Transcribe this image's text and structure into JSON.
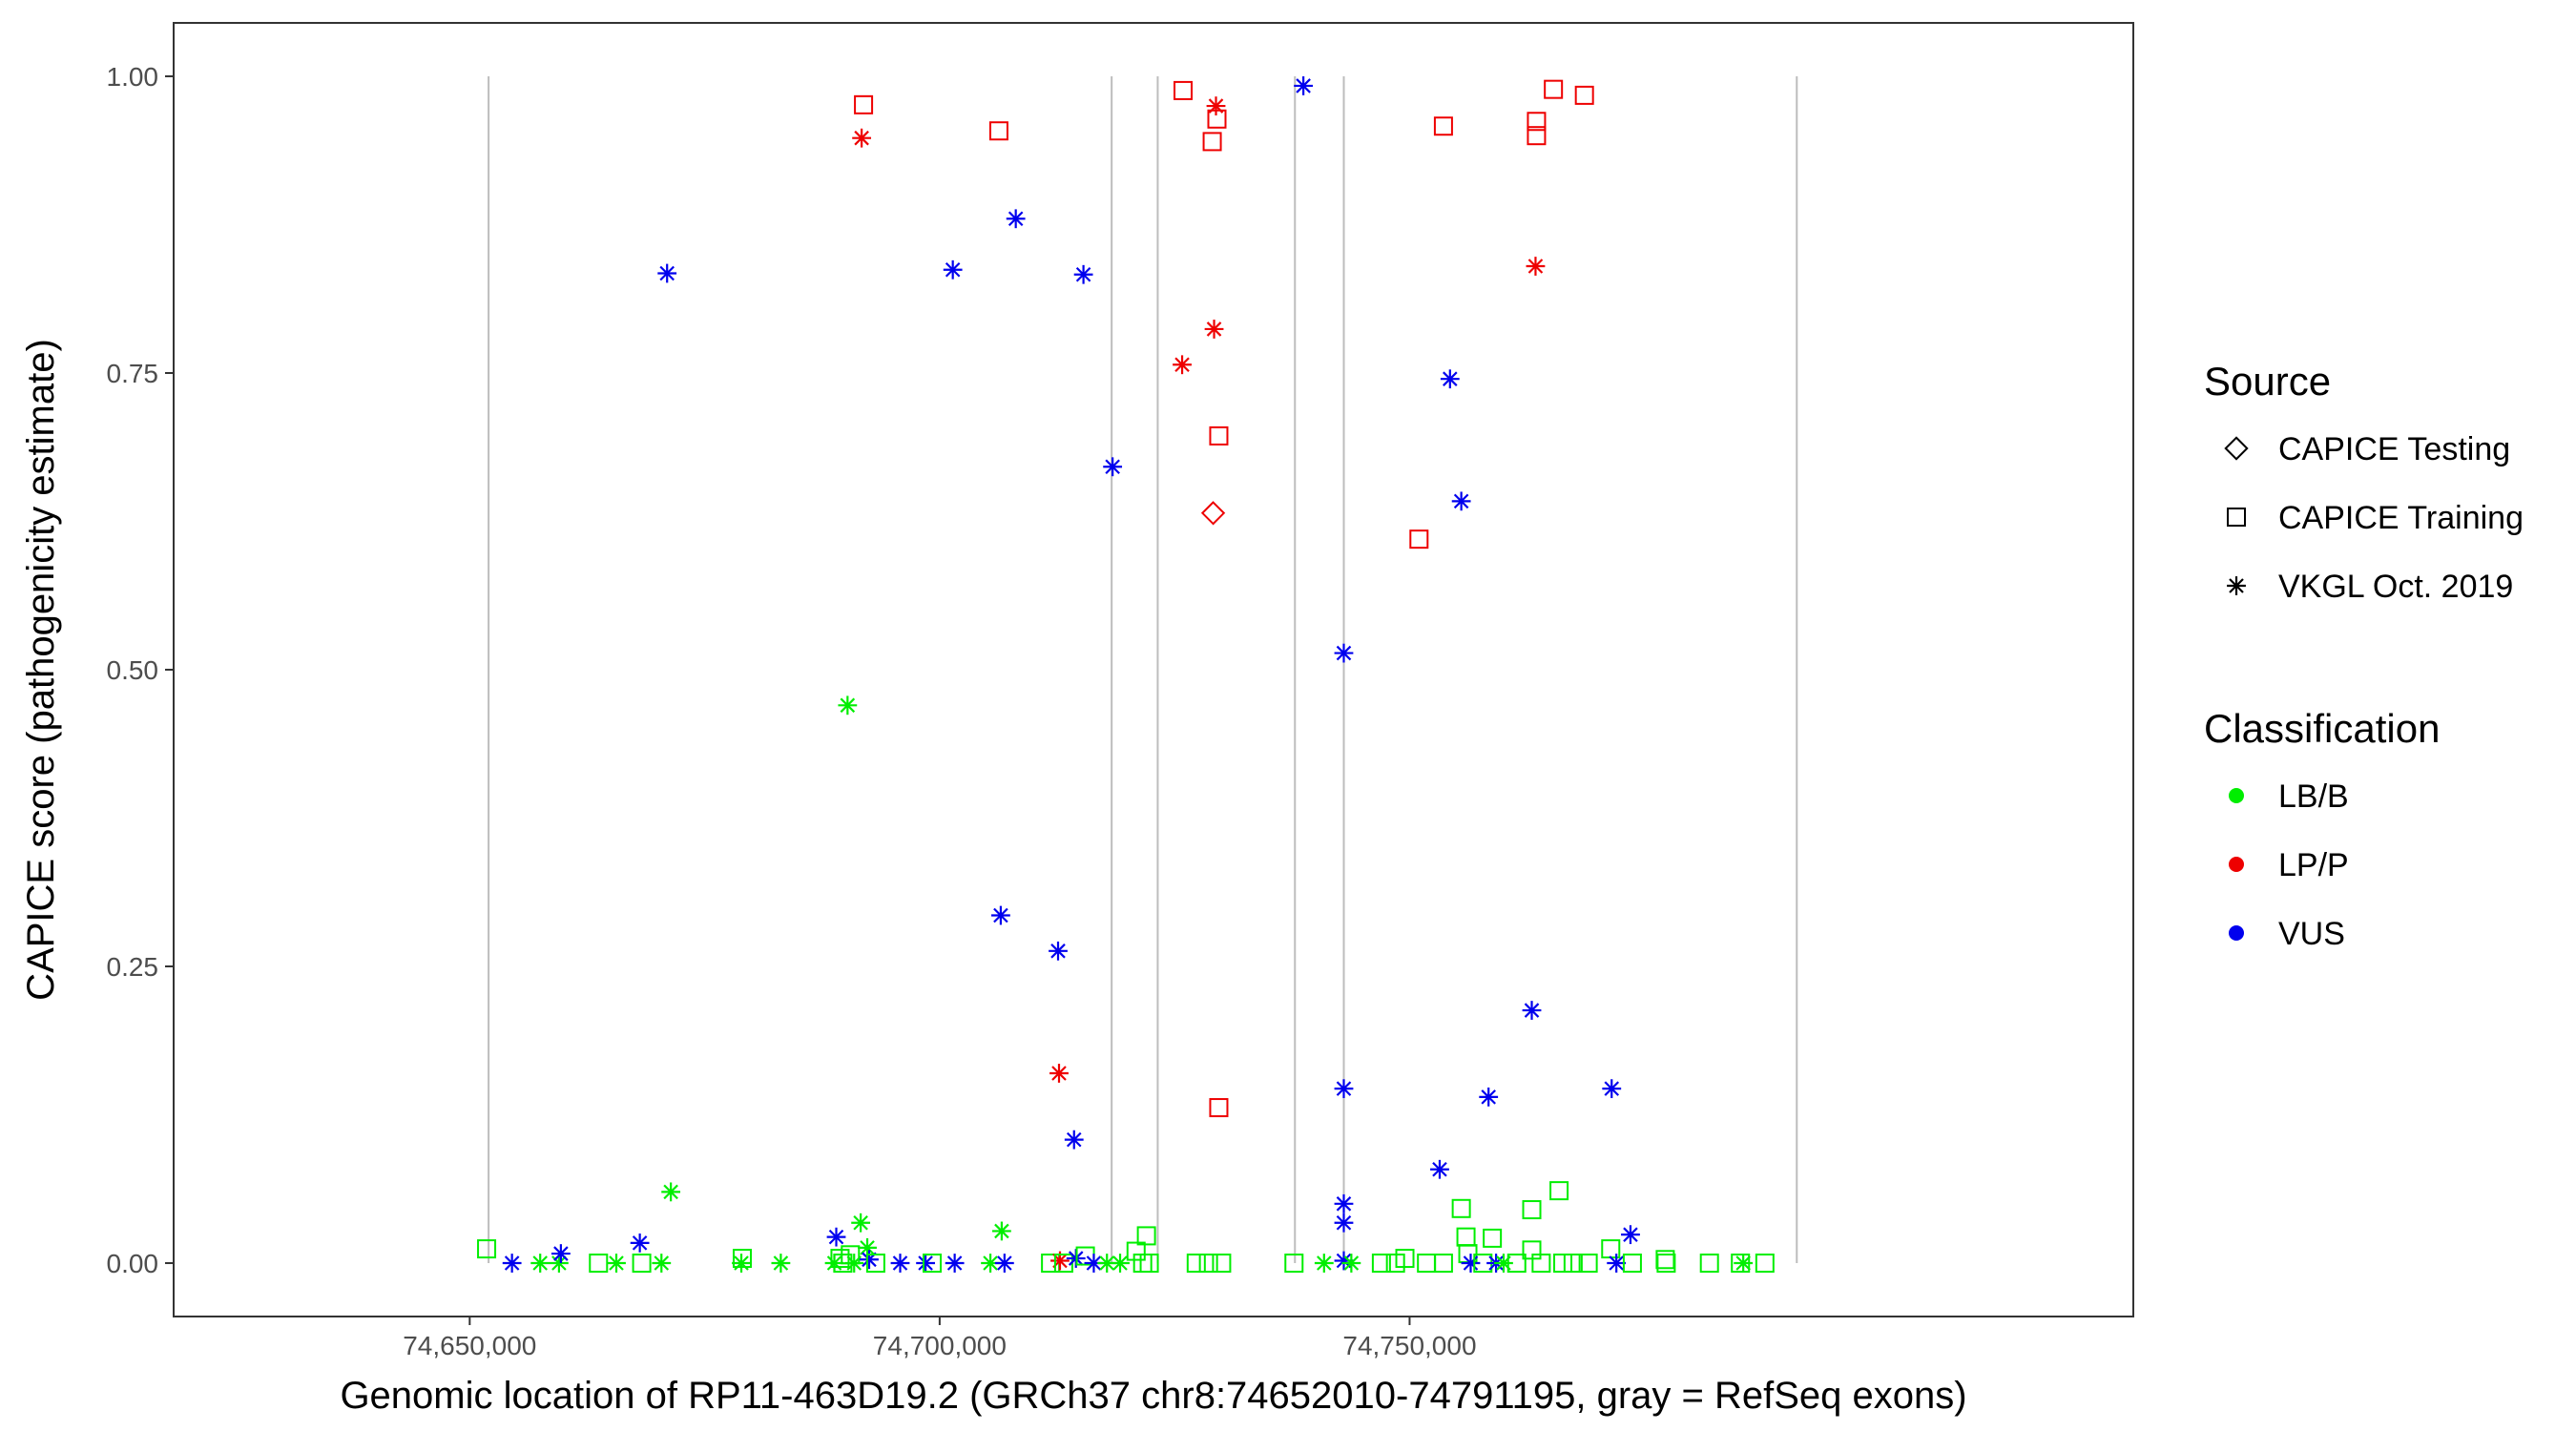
{
  "chart_data": {
    "type": "scatter",
    "title": "",
    "xlabel": "Genomic location of RP11-463D19.2 (GRCh37 chr8:74652010-74791195, gray = RefSeq exons)",
    "ylabel": "CAPICE score (pathogenicity estimate)",
    "xlim": [
      74618500,
      74827000
    ],
    "ylim": [
      -0.045,
      1.045
    ],
    "x_ticks": [
      74650000,
      74700000,
      74750000
    ],
    "x_tick_labels": [
      "74,650,000",
      "74,700,000",
      "74,750,000"
    ],
    "y_ticks": [
      0,
      0.25,
      0.5,
      0.75,
      1.0
    ],
    "y_tick_labels": [
      "0.00",
      "0.25",
      "0.50",
      "0.75",
      "1.00"
    ],
    "grid": false,
    "exon_lines": [
      74652010,
      74718300,
      74723200,
      74737800,
      74743000,
      74791195
    ],
    "exon_line_range": [
      0,
      1.0
    ],
    "legend_placement": "right",
    "colors": {
      "LB/B": "#00ee00",
      "LP/P": "#ee0000",
      "VUS": "#0000ee"
    },
    "legend": {
      "source_title": "Source",
      "source_items": [
        {
          "label": "CAPICE Testing",
          "shape": "diamond"
        },
        {
          "label": "CAPICE Training",
          "shape": "square"
        },
        {
          "label": "VKGL Oct. 2019",
          "shape": "asterisk"
        }
      ],
      "class_title": "Classification",
      "class_items": [
        {
          "label": "LB/B",
          "color": "#00ee00"
        },
        {
          "label": "LP/P",
          "color": "#ee0000"
        },
        {
          "label": "VUS",
          "color": "#0000ee"
        }
      ]
    },
    "points": [
      {
        "x": 74651800,
        "y": 0.012,
        "shape": "square",
        "cls": "LB/B"
      },
      {
        "x": 74654500,
        "y": 0.0,
        "shape": "asterisk",
        "cls": "VUS"
      },
      {
        "x": 74657500,
        "y": 0.0,
        "shape": "asterisk",
        "cls": "LB/B"
      },
      {
        "x": 74659500,
        "y": 0.0,
        "shape": "asterisk",
        "cls": "LB/B"
      },
      {
        "x": 74659700,
        "y": 0.008,
        "shape": "asterisk",
        "cls": "VUS"
      },
      {
        "x": 74663700,
        "y": 0.0,
        "shape": "square",
        "cls": "LB/B"
      },
      {
        "x": 74665600,
        "y": 0.0,
        "shape": "asterisk",
        "cls": "LB/B"
      },
      {
        "x": 74668100,
        "y": 0.017,
        "shape": "asterisk",
        "cls": "VUS"
      },
      {
        "x": 74668300,
        "y": 0.0,
        "shape": "square",
        "cls": "LB/B"
      },
      {
        "x": 74670400,
        "y": 0.0,
        "shape": "asterisk",
        "cls": "LB/B"
      },
      {
        "x": 74671000,
        "y": 0.834,
        "shape": "asterisk",
        "cls": "VUS"
      },
      {
        "x": 74671400,
        "y": 0.06,
        "shape": "asterisk",
        "cls": "LB/B"
      },
      {
        "x": 74678900,
        "y": 0.0,
        "shape": "asterisk",
        "cls": "LB/B"
      },
      {
        "x": 74679000,
        "y": 0.004,
        "shape": "square",
        "cls": "LB/B"
      },
      {
        "x": 74683100,
        "y": 0.0,
        "shape": "asterisk",
        "cls": "LB/B"
      },
      {
        "x": 74689000,
        "y": 0.022,
        "shape": "asterisk",
        "cls": "VUS"
      },
      {
        "x": 74688800,
        "y": 0.0,
        "shape": "asterisk",
        "cls": "LB/B"
      },
      {
        "x": 74689400,
        "y": 0.004,
        "shape": "square",
        "cls": "LB/B"
      },
      {
        "x": 74689700,
        "y": 0.0,
        "shape": "square",
        "cls": "LB/B"
      },
      {
        "x": 74690200,
        "y": 0.47,
        "shape": "asterisk",
        "cls": "LB/B"
      },
      {
        "x": 74690500,
        "y": 0.007,
        "shape": "square",
        "cls": "LB/B"
      },
      {
        "x": 74690900,
        "y": 0.0,
        "shape": "asterisk",
        "cls": "LB/B"
      },
      {
        "x": 74691600,
        "y": 0.034,
        "shape": "asterisk",
        "cls": "LB/B"
      },
      {
        "x": 74691700,
        "y": 0.948,
        "shape": "asterisk",
        "cls": "LP/P"
      },
      {
        "x": 74691900,
        "y": 0.976,
        "shape": "square",
        "cls": "LP/P"
      },
      {
        "x": 74692300,
        "y": 0.013,
        "shape": "asterisk",
        "cls": "LB/B"
      },
      {
        "x": 74692500,
        "y": 0.003,
        "shape": "asterisk",
        "cls": "VUS"
      },
      {
        "x": 74693200,
        "y": 0.0,
        "shape": "square",
        "cls": "LB/B"
      },
      {
        "x": 74695800,
        "y": 0.0,
        "shape": "asterisk",
        "cls": "VUS"
      },
      {
        "x": 74698500,
        "y": 0.0,
        "shape": "asterisk",
        "cls": "VUS"
      },
      {
        "x": 74699200,
        "y": 0.0,
        "shape": "square",
        "cls": "LB/B"
      },
      {
        "x": 74701400,
        "y": 0.837,
        "shape": "asterisk",
        "cls": "VUS"
      },
      {
        "x": 74701600,
        "y": 0.0,
        "shape": "asterisk",
        "cls": "VUS"
      },
      {
        "x": 74705400,
        "y": 0.0,
        "shape": "asterisk",
        "cls": "LB/B"
      },
      {
        "x": 74706300,
        "y": 0.954,
        "shape": "square",
        "cls": "LP/P"
      },
      {
        "x": 74706500,
        "y": 0.293,
        "shape": "asterisk",
        "cls": "VUS"
      },
      {
        "x": 74706600,
        "y": 0.027,
        "shape": "asterisk",
        "cls": "LB/B"
      },
      {
        "x": 74706900,
        "y": 0.0,
        "shape": "asterisk",
        "cls": "VUS"
      },
      {
        "x": 74708100,
        "y": 0.88,
        "shape": "asterisk",
        "cls": "VUS"
      },
      {
        "x": 74711800,
        "y": 0.0,
        "shape": "square",
        "cls": "LB/B"
      },
      {
        "x": 74712600,
        "y": 0.263,
        "shape": "asterisk",
        "cls": "VUS"
      },
      {
        "x": 74712700,
        "y": 0.16,
        "shape": "asterisk",
        "cls": "LP/P"
      },
      {
        "x": 74712800,
        "y": 0.002,
        "shape": "asterisk",
        "cls": "LP/P"
      },
      {
        "x": 74713200,
        "y": 0.0,
        "shape": "square",
        "cls": "LB/B"
      },
      {
        "x": 74714300,
        "y": 0.104,
        "shape": "asterisk",
        "cls": "VUS"
      },
      {
        "x": 74714500,
        "y": 0.004,
        "shape": "asterisk",
        "cls": "VUS"
      },
      {
        "x": 74715300,
        "y": 0.833,
        "shape": "asterisk",
        "cls": "VUS"
      },
      {
        "x": 74715500,
        "y": 0.006,
        "shape": "square",
        "cls": "LB/B"
      },
      {
        "x": 74716400,
        "y": 0.0,
        "shape": "asterisk",
        "cls": "VUS"
      },
      {
        "x": 74717800,
        "y": 0.0,
        "shape": "asterisk",
        "cls": "LB/B"
      },
      {
        "x": 74718400,
        "y": 0.671,
        "shape": "asterisk",
        "cls": "VUS"
      },
      {
        "x": 74719200,
        "y": 0.0,
        "shape": "asterisk",
        "cls": "LB/B"
      },
      {
        "x": 74720900,
        "y": 0.01,
        "shape": "square",
        "cls": "LB/B"
      },
      {
        "x": 74721600,
        "y": 0.0,
        "shape": "square",
        "cls": "LB/B"
      },
      {
        "x": 74722000,
        "y": 0.023,
        "shape": "square",
        "cls": "LB/B"
      },
      {
        "x": 74722300,
        "y": 0.0,
        "shape": "square",
        "cls": "LB/B"
      },
      {
        "x": 74725900,
        "y": 0.988,
        "shape": "square",
        "cls": "LP/P"
      },
      {
        "x": 74725800,
        "y": 0.757,
        "shape": "asterisk",
        "cls": "LP/P"
      },
      {
        "x": 74727300,
        "y": 0.0,
        "shape": "square",
        "cls": "LB/B"
      },
      {
        "x": 74728600,
        "y": 0.0,
        "shape": "square",
        "cls": "LB/B"
      },
      {
        "x": 74729000,
        "y": 0.945,
        "shape": "square",
        "cls": "LP/P"
      },
      {
        "x": 74729100,
        "y": 0.632,
        "shape": "diamond",
        "cls": "LP/P"
      },
      {
        "x": 74729200,
        "y": 0.787,
        "shape": "asterisk",
        "cls": "LP/P"
      },
      {
        "x": 74729400,
        "y": 0.975,
        "shape": "asterisk",
        "cls": "LP/P"
      },
      {
        "x": 74729500,
        "y": 0.964,
        "shape": "square",
        "cls": "LP/P"
      },
      {
        "x": 74729700,
        "y": 0.697,
        "shape": "square",
        "cls": "LP/P"
      },
      {
        "x": 74729700,
        "y": 0.131,
        "shape": "square",
        "cls": "LP/P"
      },
      {
        "x": 74730000,
        "y": 0.0,
        "shape": "square",
        "cls": "LB/B"
      },
      {
        "x": 74738700,
        "y": 0.992,
        "shape": "asterisk",
        "cls": "VUS"
      },
      {
        "x": 74737700,
        "y": 0.0,
        "shape": "square",
        "cls": "LB/B"
      },
      {
        "x": 74740900,
        "y": 0.0,
        "shape": "asterisk",
        "cls": "LB/B"
      },
      {
        "x": 74743000,
        "y": 0.514,
        "shape": "asterisk",
        "cls": "VUS"
      },
      {
        "x": 74743000,
        "y": 0.147,
        "shape": "asterisk",
        "cls": "VUS"
      },
      {
        "x": 74743000,
        "y": 0.05,
        "shape": "asterisk",
        "cls": "VUS"
      },
      {
        "x": 74743000,
        "y": 0.034,
        "shape": "asterisk",
        "cls": "VUS"
      },
      {
        "x": 74743000,
        "y": 0.002,
        "shape": "asterisk",
        "cls": "VUS"
      },
      {
        "x": 74743800,
        "y": 0.0,
        "shape": "asterisk",
        "cls": "LB/B"
      },
      {
        "x": 74747000,
        "y": 0.0,
        "shape": "square",
        "cls": "LB/B"
      },
      {
        "x": 74748500,
        "y": 0.0,
        "shape": "square",
        "cls": "LB/B"
      },
      {
        "x": 74749500,
        "y": 0.004,
        "shape": "square",
        "cls": "LB/B"
      },
      {
        "x": 74751000,
        "y": 0.61,
        "shape": "square",
        "cls": "LP/P"
      },
      {
        "x": 74751800,
        "y": 0.0,
        "shape": "square",
        "cls": "LB/B"
      },
      {
        "x": 74753200,
        "y": 0.079,
        "shape": "asterisk",
        "cls": "VUS"
      },
      {
        "x": 74753600,
        "y": 0.958,
        "shape": "square",
        "cls": "LP/P"
      },
      {
        "x": 74753600,
        "y": 0.0,
        "shape": "square",
        "cls": "LB/B"
      },
      {
        "x": 74754300,
        "y": 0.745,
        "shape": "asterisk",
        "cls": "VUS"
      },
      {
        "x": 74755500,
        "y": 0.046,
        "shape": "square",
        "cls": "LB/B"
      },
      {
        "x": 74755500,
        "y": 0.642,
        "shape": "asterisk",
        "cls": "VUS"
      },
      {
        "x": 74756000,
        "y": 0.022,
        "shape": "square",
        "cls": "LB/B"
      },
      {
        "x": 74756200,
        "y": 0.008,
        "shape": "square",
        "cls": "LB/B"
      },
      {
        "x": 74756500,
        "y": 0.0,
        "shape": "asterisk",
        "cls": "VUS"
      },
      {
        "x": 74757800,
        "y": 0.0,
        "shape": "square",
        "cls": "LB/B"
      },
      {
        "x": 74758400,
        "y": 0.14,
        "shape": "asterisk",
        "cls": "VUS"
      },
      {
        "x": 74758800,
        "y": 0.021,
        "shape": "square",
        "cls": "LB/B"
      },
      {
        "x": 74759200,
        "y": 0.0,
        "shape": "asterisk",
        "cls": "VUS"
      },
      {
        "x": 74760000,
        "y": 0.0,
        "shape": "asterisk",
        "cls": "LB/B"
      },
      {
        "x": 74761400,
        "y": 0.0,
        "shape": "square",
        "cls": "LB/B"
      },
      {
        "x": 74763000,
        "y": 0.045,
        "shape": "square",
        "cls": "LB/B"
      },
      {
        "x": 74763000,
        "y": 0.213,
        "shape": "asterisk",
        "cls": "VUS"
      },
      {
        "x": 74763000,
        "y": 0.011,
        "shape": "square",
        "cls": "LB/B"
      },
      {
        "x": 74763500,
        "y": 0.95,
        "shape": "square",
        "cls": "LP/P"
      },
      {
        "x": 74763500,
        "y": 0.962,
        "shape": "square",
        "cls": "LP/P"
      },
      {
        "x": 74763400,
        "y": 0.84,
        "shape": "asterisk",
        "cls": "LP/P"
      },
      {
        "x": 74764000,
        "y": 0.0,
        "shape": "square",
        "cls": "LB/B"
      },
      {
        "x": 74765300,
        "y": 0.989,
        "shape": "square",
        "cls": "LP/P"
      },
      {
        "x": 74765900,
        "y": 0.061,
        "shape": "square",
        "cls": "LB/B"
      },
      {
        "x": 74766300,
        "y": 0.0,
        "shape": "square",
        "cls": "LB/B"
      },
      {
        "x": 74767400,
        "y": 0.0,
        "shape": "square",
        "cls": "LB/B"
      },
      {
        "x": 74768600,
        "y": 0.984,
        "shape": "square",
        "cls": "LP/P"
      },
      {
        "x": 74769000,
        "y": 0.0,
        "shape": "square",
        "cls": "LB/B"
      },
      {
        "x": 74771400,
        "y": 0.012,
        "shape": "square",
        "cls": "LB/B"
      },
      {
        "x": 74771500,
        "y": 0.147,
        "shape": "asterisk",
        "cls": "VUS"
      },
      {
        "x": 74772000,
        "y": 0.0,
        "shape": "asterisk",
        "cls": "VUS"
      },
      {
        "x": 74773500,
        "y": 0.024,
        "shape": "asterisk",
        "cls": "VUS"
      },
      {
        "x": 74773700,
        "y": 0.0,
        "shape": "square",
        "cls": "LB/B"
      },
      {
        "x": 74777200,
        "y": 0.003,
        "shape": "square",
        "cls": "LB/B"
      },
      {
        "x": 74777300,
        "y": 0.0,
        "shape": "square",
        "cls": "LB/B"
      },
      {
        "x": 74781900,
        "y": 0.0,
        "shape": "square",
        "cls": "LB/B"
      },
      {
        "x": 74785200,
        "y": 0.0,
        "shape": "square",
        "cls": "LB/B"
      },
      {
        "x": 74785500,
        "y": 0.0,
        "shape": "asterisk",
        "cls": "LB/B"
      },
      {
        "x": 74787800,
        "y": 0.0,
        "shape": "square",
        "cls": "LB/B"
      }
    ]
  }
}
